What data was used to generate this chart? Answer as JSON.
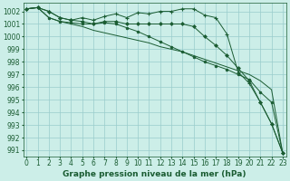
{
  "title": "Graphe pression niveau de la mer (hPa)",
  "bg_color": "#cceee8",
  "grid_color": "#99cccc",
  "line_color": "#1a5c32",
  "xmin": -0.3,
  "xmax": 23.3,
  "ymin": 990.5,
  "ymax": 1002.7,
  "yticks": [
    991,
    992,
    993,
    994,
    995,
    996,
    997,
    998,
    999,
    1000,
    1001,
    1002
  ],
  "xticks": [
    0,
    1,
    2,
    3,
    4,
    5,
    6,
    7,
    8,
    9,
    10,
    11,
    12,
    13,
    14,
    15,
    16,
    17,
    18,
    19,
    20,
    21,
    22,
    23
  ],
  "series": [
    {
      "x": [
        0,
        1,
        2,
        3,
        4,
        5,
        6,
        7,
        8,
        9,
        10,
        11,
        12,
        13,
        14,
        15,
        16,
        17,
        18,
        19,
        20,
        21,
        22,
        23
      ],
      "y": [
        1002.2,
        1002.3,
        1002.0,
        1001.5,
        1001.3,
        1001.5,
        1001.3,
        1001.6,
        1001.8,
        1001.5,
        1001.9,
        1001.8,
        1002.0,
        1002.0,
        1002.2,
        1002.2,
        1001.7,
        1001.5,
        1000.2,
        997.2,
        996.3,
        994.8,
        993.1,
        990.8
      ],
      "marker": "+"
    },
    {
      "x": [
        0,
        1,
        2,
        3,
        4,
        5,
        6,
        7,
        8,
        9,
        10,
        11,
        12,
        13,
        14,
        15,
        16,
        17,
        18,
        19,
        20,
        21,
        22,
        23
      ],
      "y": [
        1002.2,
        1002.3,
        1001.5,
        1001.2,
        1001.1,
        1001.0,
        1001.0,
        1001.1,
        1001.0,
        1000.7,
        1000.4,
        1000.0,
        999.6,
        999.2,
        998.8,
        998.4,
        998.0,
        997.7,
        997.4,
        997.0,
        996.6,
        995.6,
        994.8,
        990.8
      ],
      "marker": "o"
    },
    {
      "x": [
        0,
        1,
        2,
        3,
        4,
        5,
        6,
        7,
        8,
        9,
        10,
        11,
        12,
        13,
        14,
        15,
        16,
        17,
        18,
        19,
        20,
        21,
        22,
        23
      ],
      "y": [
        1002.2,
        1002.3,
        1001.5,
        1001.2,
        1001.0,
        1000.8,
        1000.5,
        1000.3,
        1000.1,
        999.9,
        999.7,
        999.5,
        999.2,
        999.0,
        998.8,
        998.5,
        998.2,
        997.9,
        997.6,
        997.3,
        997.0,
        996.5,
        995.8,
        990.8
      ],
      "marker": null
    },
    {
      "x": [
        0,
        1,
        2,
        3,
        4,
        5,
        6,
        7,
        8,
        9,
        10,
        11,
        12,
        13,
        14,
        15,
        16,
        17,
        18,
        19,
        20,
        21,
        22,
        23
      ],
      "y": [
        1002.2,
        1002.3,
        1002.0,
        1001.5,
        1001.3,
        1001.2,
        1001.0,
        1001.2,
        1001.2,
        1001.0,
        1001.0,
        1001.0,
        1001.0,
        1001.0,
        1001.0,
        1000.8,
        1000.0,
        999.3,
        998.5,
        997.5,
        996.5,
        994.8,
        993.1,
        990.8
      ],
      "marker": "D"
    }
  ],
  "title_fontsize": 6.5,
  "tick_fontsize": 5.5,
  "title_color": "#1a5c32",
  "linewidth": 0.7,
  "markersize": 2.5
}
